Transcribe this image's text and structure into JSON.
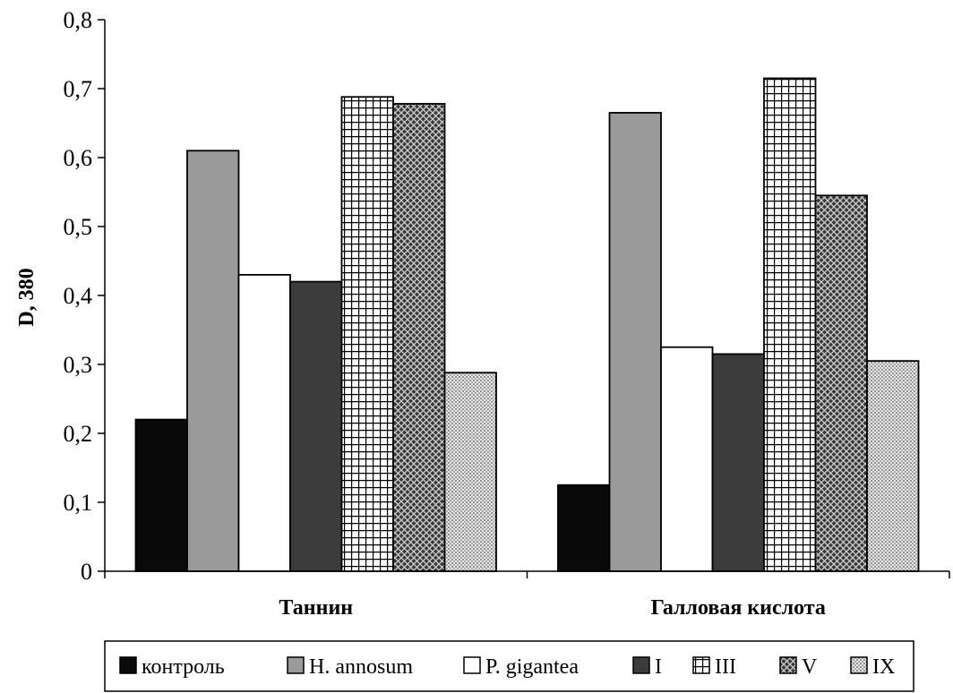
{
  "chart_data": {
    "type": "bar",
    "ylabel": "D, 380",
    "xlabel": "",
    "ylim": [
      0,
      0.8
    ],
    "yticks": [
      "0",
      "0,1",
      "0,2",
      "0,3",
      "0,4",
      "0,5",
      "0,6",
      "0,7",
      "0,8"
    ],
    "categories": [
      "Таннин",
      "Галловая кислота"
    ],
    "series": [
      {
        "name": "контроль",
        "values": [
          0.22,
          0.125
        ],
        "pattern": "solid-black"
      },
      {
        "name": "H. annosum",
        "values": [
          0.61,
          0.665
        ],
        "pattern": "solid-gray"
      },
      {
        "name": "P. gigantea",
        "values": [
          0.43,
          0.325
        ],
        "pattern": "white"
      },
      {
        "name": "I",
        "values": [
          0.42,
          0.315
        ],
        "pattern": "dark-gray"
      },
      {
        "name": "III",
        "values": [
          0.688,
          0.715
        ],
        "pattern": "grid"
      },
      {
        "name": "V",
        "values": [
          0.678,
          0.545
        ],
        "pattern": "crosshatch"
      },
      {
        "name": "IX",
        "values": [
          0.288,
          0.305
        ],
        "pattern": "dots"
      }
    ],
    "legend_position": "bottom",
    "grid": false
  }
}
